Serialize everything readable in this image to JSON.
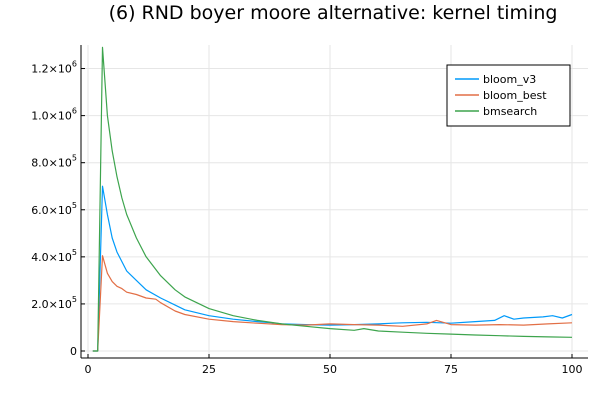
{
  "chart_data": {
    "type": "line",
    "title": "(6) RND boyer moore alternative: kernel timing",
    "xlabel": "",
    "ylabel": "",
    "xlim": [
      0,
      100
    ],
    "ylim": [
      0,
      1300000
    ],
    "grid": true,
    "legend_position": "top-right",
    "x_ticks": [
      {
        "value": 0,
        "label": "0"
      },
      {
        "value": 25,
        "label": "25"
      },
      {
        "value": 50,
        "label": "50"
      },
      {
        "value": 75,
        "label": "75"
      },
      {
        "value": 100,
        "label": "100"
      }
    ],
    "y_ticks": [
      {
        "value": 0,
        "mantissa": "0",
        "exponent": ""
      },
      {
        "value": 200000,
        "mantissa": "2.0×10",
        "exponent": "5"
      },
      {
        "value": 400000,
        "mantissa": "4.0×10",
        "exponent": "5"
      },
      {
        "value": 600000,
        "mantissa": "6.0×10",
        "exponent": "5"
      },
      {
        "value": 800000,
        "mantissa": "8.0×10",
        "exponent": "5"
      },
      {
        "value": 1000000,
        "mantissa": "1.0×10",
        "exponent": "6"
      },
      {
        "value": 1200000,
        "mantissa": "1.2×10",
        "exponent": "6"
      }
    ],
    "series": [
      {
        "name": "bloom_v3",
        "color": "#009AFA",
        "x": [
          1,
          2,
          3,
          4,
          5,
          6,
          7,
          8,
          10,
          12,
          15,
          18,
          20,
          25,
          30,
          35,
          38,
          40,
          45,
          50,
          55,
          60,
          63,
          65,
          70,
          75,
          80,
          84,
          86,
          88,
          90,
          94,
          96,
          98,
          100
        ],
        "y": [
          0,
          0,
          700000,
          580000,
          480000,
          420000,
          380000,
          340000,
          300000,
          260000,
          225000,
          195000,
          175000,
          150000,
          135000,
          125000,
          120000,
          115000,
          112000,
          110000,
          112000,
          115000,
          118000,
          120000,
          122000,
          118000,
          125000,
          130000,
          150000,
          135000,
          140000,
          145000,
          150000,
          140000,
          155000
        ]
      },
      {
        "name": "bloom_best",
        "color": "#E26F46",
        "x": [
          1,
          2,
          3,
          4,
          5,
          6,
          7,
          8,
          10,
          12,
          14,
          15,
          18,
          20,
          25,
          30,
          35,
          40,
          45,
          50,
          55,
          60,
          62,
          65,
          70,
          72,
          75,
          80,
          85,
          90,
          95,
          100
        ],
        "y": [
          0,
          0,
          405000,
          330000,
          295000,
          275000,
          265000,
          250000,
          240000,
          225000,
          220000,
          205000,
          170000,
          155000,
          135000,
          125000,
          118000,
          112000,
          110000,
          115000,
          112000,
          110000,
          108000,
          105000,
          115000,
          130000,
          112000,
          110000,
          112000,
          110000,
          115000,
          120000
        ]
      },
      {
        "name": "bmsearch",
        "color": "#3DA44D",
        "x": [
          1,
          2,
          3,
          4,
          5,
          6,
          7,
          8,
          10,
          12,
          15,
          18,
          20,
          25,
          30,
          35,
          40,
          45,
          50,
          55,
          57,
          60,
          65,
          70,
          75,
          80,
          85,
          90,
          95,
          100
        ],
        "y": [
          0,
          0,
          1290000,
          1000000,
          850000,
          740000,
          650000,
          580000,
          480000,
          400000,
          320000,
          260000,
          230000,
          180000,
          150000,
          130000,
          115000,
          105000,
          95000,
          88000,
          95000,
          85000,
          80000,
          75000,
          72000,
          68000,
          65000,
          62000,
          60000,
          58000
        ]
      }
    ]
  }
}
